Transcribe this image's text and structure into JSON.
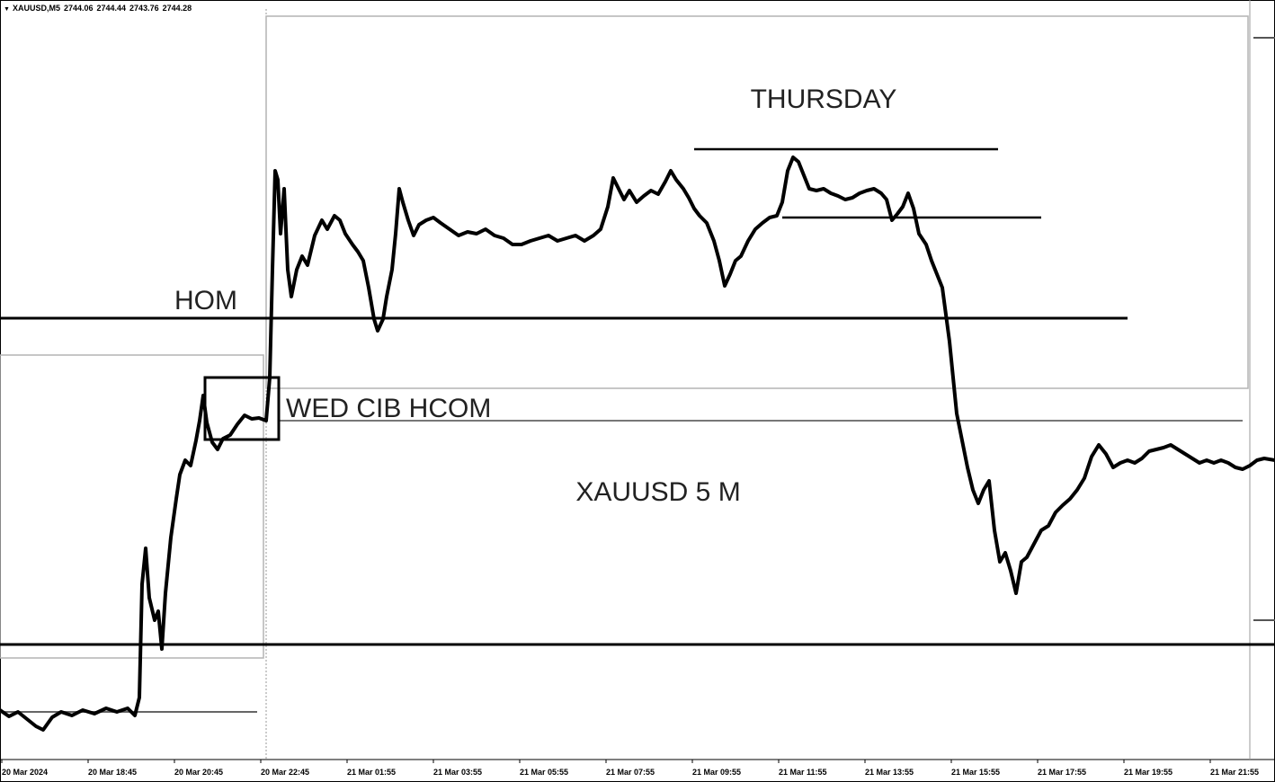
{
  "header": {
    "symbol": "XAUUSD,M5",
    "open": "2744.06",
    "high": "2744.44",
    "low": "2743.76",
    "close": "2744.28"
  },
  "chart_data": {
    "type": "line",
    "title": "XAUUSD 5 M",
    "x_ticks": [
      "20 Mar 2024",
      "20 Mar 18:45",
      "20 Mar 20:45",
      "20 Mar 22:45",
      "21 Mar 01:55",
      "21 Mar 03:55",
      "21 Mar 05:55",
      "21 Mar 07:55",
      "21 Mar 09:55",
      "21 Mar 11:55",
      "21 Mar 13:55",
      "21 Mar 15:55",
      "21 Mar 17:55",
      "21 Mar 19:55",
      "21 Mar 21:55"
    ],
    "annotations": [
      "THURSDAY",
      "HOM",
      "WED CIB HCOM"
    ],
    "grid": false,
    "series": [
      {
        "points": [
          [
            0,
            790
          ],
          [
            10,
            797
          ],
          [
            20,
            792
          ],
          [
            30,
            800
          ],
          [
            40,
            808
          ],
          [
            48,
            812
          ],
          [
            58,
            798
          ],
          [
            68,
            792
          ],
          [
            80,
            796
          ],
          [
            92,
            790
          ],
          [
            105,
            794
          ],
          [
            118,
            788
          ],
          [
            130,
            792
          ],
          [
            142,
            788
          ],
          [
            150,
            796
          ],
          [
            155,
            776
          ],
          [
            158,
            650
          ],
          [
            162,
            610
          ],
          [
            166,
            665
          ],
          [
            172,
            690
          ],
          [
            176,
            680
          ],
          [
            180,
            722
          ],
          [
            184,
            660
          ],
          [
            190,
            598
          ],
          [
            196,
            555
          ],
          [
            200,
            528
          ],
          [
            206,
            512
          ],
          [
            212,
            518
          ],
          [
            218,
            490
          ],
          [
            222,
            468
          ],
          [
            226,
            440
          ],
          [
            230,
            470
          ],
          [
            236,
            492
          ],
          [
            242,
            500
          ],
          [
            248,
            488
          ],
          [
            256,
            484
          ],
          [
            264,
            472
          ],
          [
            272,
            462
          ],
          [
            280,
            466
          ],
          [
            288,
            465
          ],
          [
            296,
            468
          ],
          [
            300,
            420
          ],
          [
            303,
            300
          ],
          [
            306,
            190
          ],
          [
            309,
            200
          ],
          [
            312,
            260
          ],
          [
            316,
            210
          ],
          [
            320,
            300
          ],
          [
            324,
            330
          ],
          [
            330,
            300
          ],
          [
            336,
            285
          ],
          [
            342,
            295
          ],
          [
            350,
            262
          ],
          [
            358,
            245
          ],
          [
            364,
            255
          ],
          [
            372,
            240
          ],
          [
            378,
            245
          ],
          [
            384,
            260
          ],
          [
            392,
            272
          ],
          [
            398,
            280
          ],
          [
            404,
            290
          ],
          [
            410,
            320
          ],
          [
            416,
            355
          ],
          [
            420,
            368
          ],
          [
            426,
            355
          ],
          [
            430,
            330
          ],
          [
            436,
            300
          ],
          [
            440,
            260
          ],
          [
            444,
            210
          ],
          [
            448,
            225
          ],
          [
            454,
            245
          ],
          [
            460,
            262
          ],
          [
            466,
            250
          ],
          [
            474,
            245
          ],
          [
            482,
            242
          ],
          [
            490,
            248
          ],
          [
            500,
            255
          ],
          [
            510,
            262
          ],
          [
            520,
            258
          ],
          [
            530,
            260
          ],
          [
            540,
            255
          ],
          [
            550,
            262
          ],
          [
            560,
            265
          ],
          [
            570,
            272
          ],
          [
            580,
            272
          ],
          [
            590,
            268
          ],
          [
            600,
            265
          ],
          [
            610,
            262
          ],
          [
            620,
            268
          ],
          [
            630,
            265
          ],
          [
            640,
            262
          ],
          [
            650,
            268
          ],
          [
            660,
            262
          ],
          [
            668,
            255
          ],
          [
            676,
            230
          ],
          [
            682,
            198
          ],
          [
            688,
            210
          ],
          [
            694,
            222
          ],
          [
            700,
            212
          ],
          [
            708,
            225
          ],
          [
            716,
            218
          ],
          [
            724,
            212
          ],
          [
            732,
            216
          ],
          [
            740,
            202
          ],
          [
            746,
            190
          ],
          [
            752,
            200
          ],
          [
            760,
            210
          ],
          [
            766,
            220
          ],
          [
            772,
            232
          ],
          [
            778,
            240
          ],
          [
            786,
            248
          ],
          [
            794,
            268
          ],
          [
            800,
            290
          ],
          [
            806,
            318
          ],
          [
            812,
            305
          ],
          [
            818,
            290
          ],
          [
            824,
            285
          ],
          [
            832,
            268
          ],
          [
            840,
            255
          ],
          [
            848,
            248
          ],
          [
            856,
            242
          ],
          [
            864,
            240
          ],
          [
            870,
            225
          ],
          [
            876,
            190
          ],
          [
            882,
            175
          ],
          [
            888,
            180
          ],
          [
            894,
            195
          ],
          [
            900,
            210
          ],
          [
            908,
            212
          ],
          [
            916,
            210
          ],
          [
            924,
            215
          ],
          [
            932,
            218
          ],
          [
            940,
            222
          ],
          [
            948,
            220
          ],
          [
            956,
            215
          ],
          [
            964,
            212
          ],
          [
            972,
            210
          ],
          [
            980,
            215
          ],
          [
            986,
            222
          ],
          [
            992,
            245
          ],
          [
            998,
            238
          ],
          [
            1004,
            230
          ],
          [
            1010,
            215
          ],
          [
            1016,
            232
          ],
          [
            1022,
            260
          ],
          [
            1030,
            272
          ],
          [
            1036,
            290
          ],
          [
            1042,
            305
          ],
          [
            1048,
            320
          ],
          [
            1052,
            350
          ],
          [
            1056,
            380
          ],
          [
            1060,
            420
          ],
          [
            1064,
            460
          ],
          [
            1070,
            490
          ],
          [
            1076,
            520
          ],
          [
            1082,
            545
          ],
          [
            1088,
            560
          ],
          [
            1094,
            545
          ],
          [
            1100,
            535
          ],
          [
            1106,
            590
          ],
          [
            1112,
            625
          ],
          [
            1118,
            615
          ],
          [
            1124,
            635
          ],
          [
            1130,
            660
          ],
          [
            1136,
            625
          ],
          [
            1142,
            620
          ],
          [
            1150,
            605
          ],
          [
            1158,
            590
          ],
          [
            1166,
            585
          ],
          [
            1174,
            570
          ],
          [
            1182,
            562
          ],
          [
            1190,
            555
          ],
          [
            1198,
            545
          ],
          [
            1206,
            532
          ],
          [
            1214,
            508
          ],
          [
            1222,
            495
          ],
          [
            1230,
            505
          ],
          [
            1238,
            520
          ],
          [
            1246,
            515
          ],
          [
            1254,
            512
          ],
          [
            1262,
            515
          ],
          [
            1270,
            510
          ],
          [
            1278,
            502
          ],
          [
            1286,
            500
          ],
          [
            1294,
            498
          ],
          [
            1302,
            495
          ],
          [
            1310,
            500
          ],
          [
            1318,
            505
          ],
          [
            1326,
            510
          ],
          [
            1334,
            515
          ],
          [
            1342,
            512
          ],
          [
            1350,
            515
          ],
          [
            1358,
            512
          ],
          [
            1366,
            515
          ],
          [
            1374,
            520
          ],
          [
            1382,
            522
          ],
          [
            1390,
            518
          ],
          [
            1398,
            512
          ],
          [
            1406,
            510
          ],
          [
            1418,
            512
          ]
        ]
      }
    ]
  }
}
